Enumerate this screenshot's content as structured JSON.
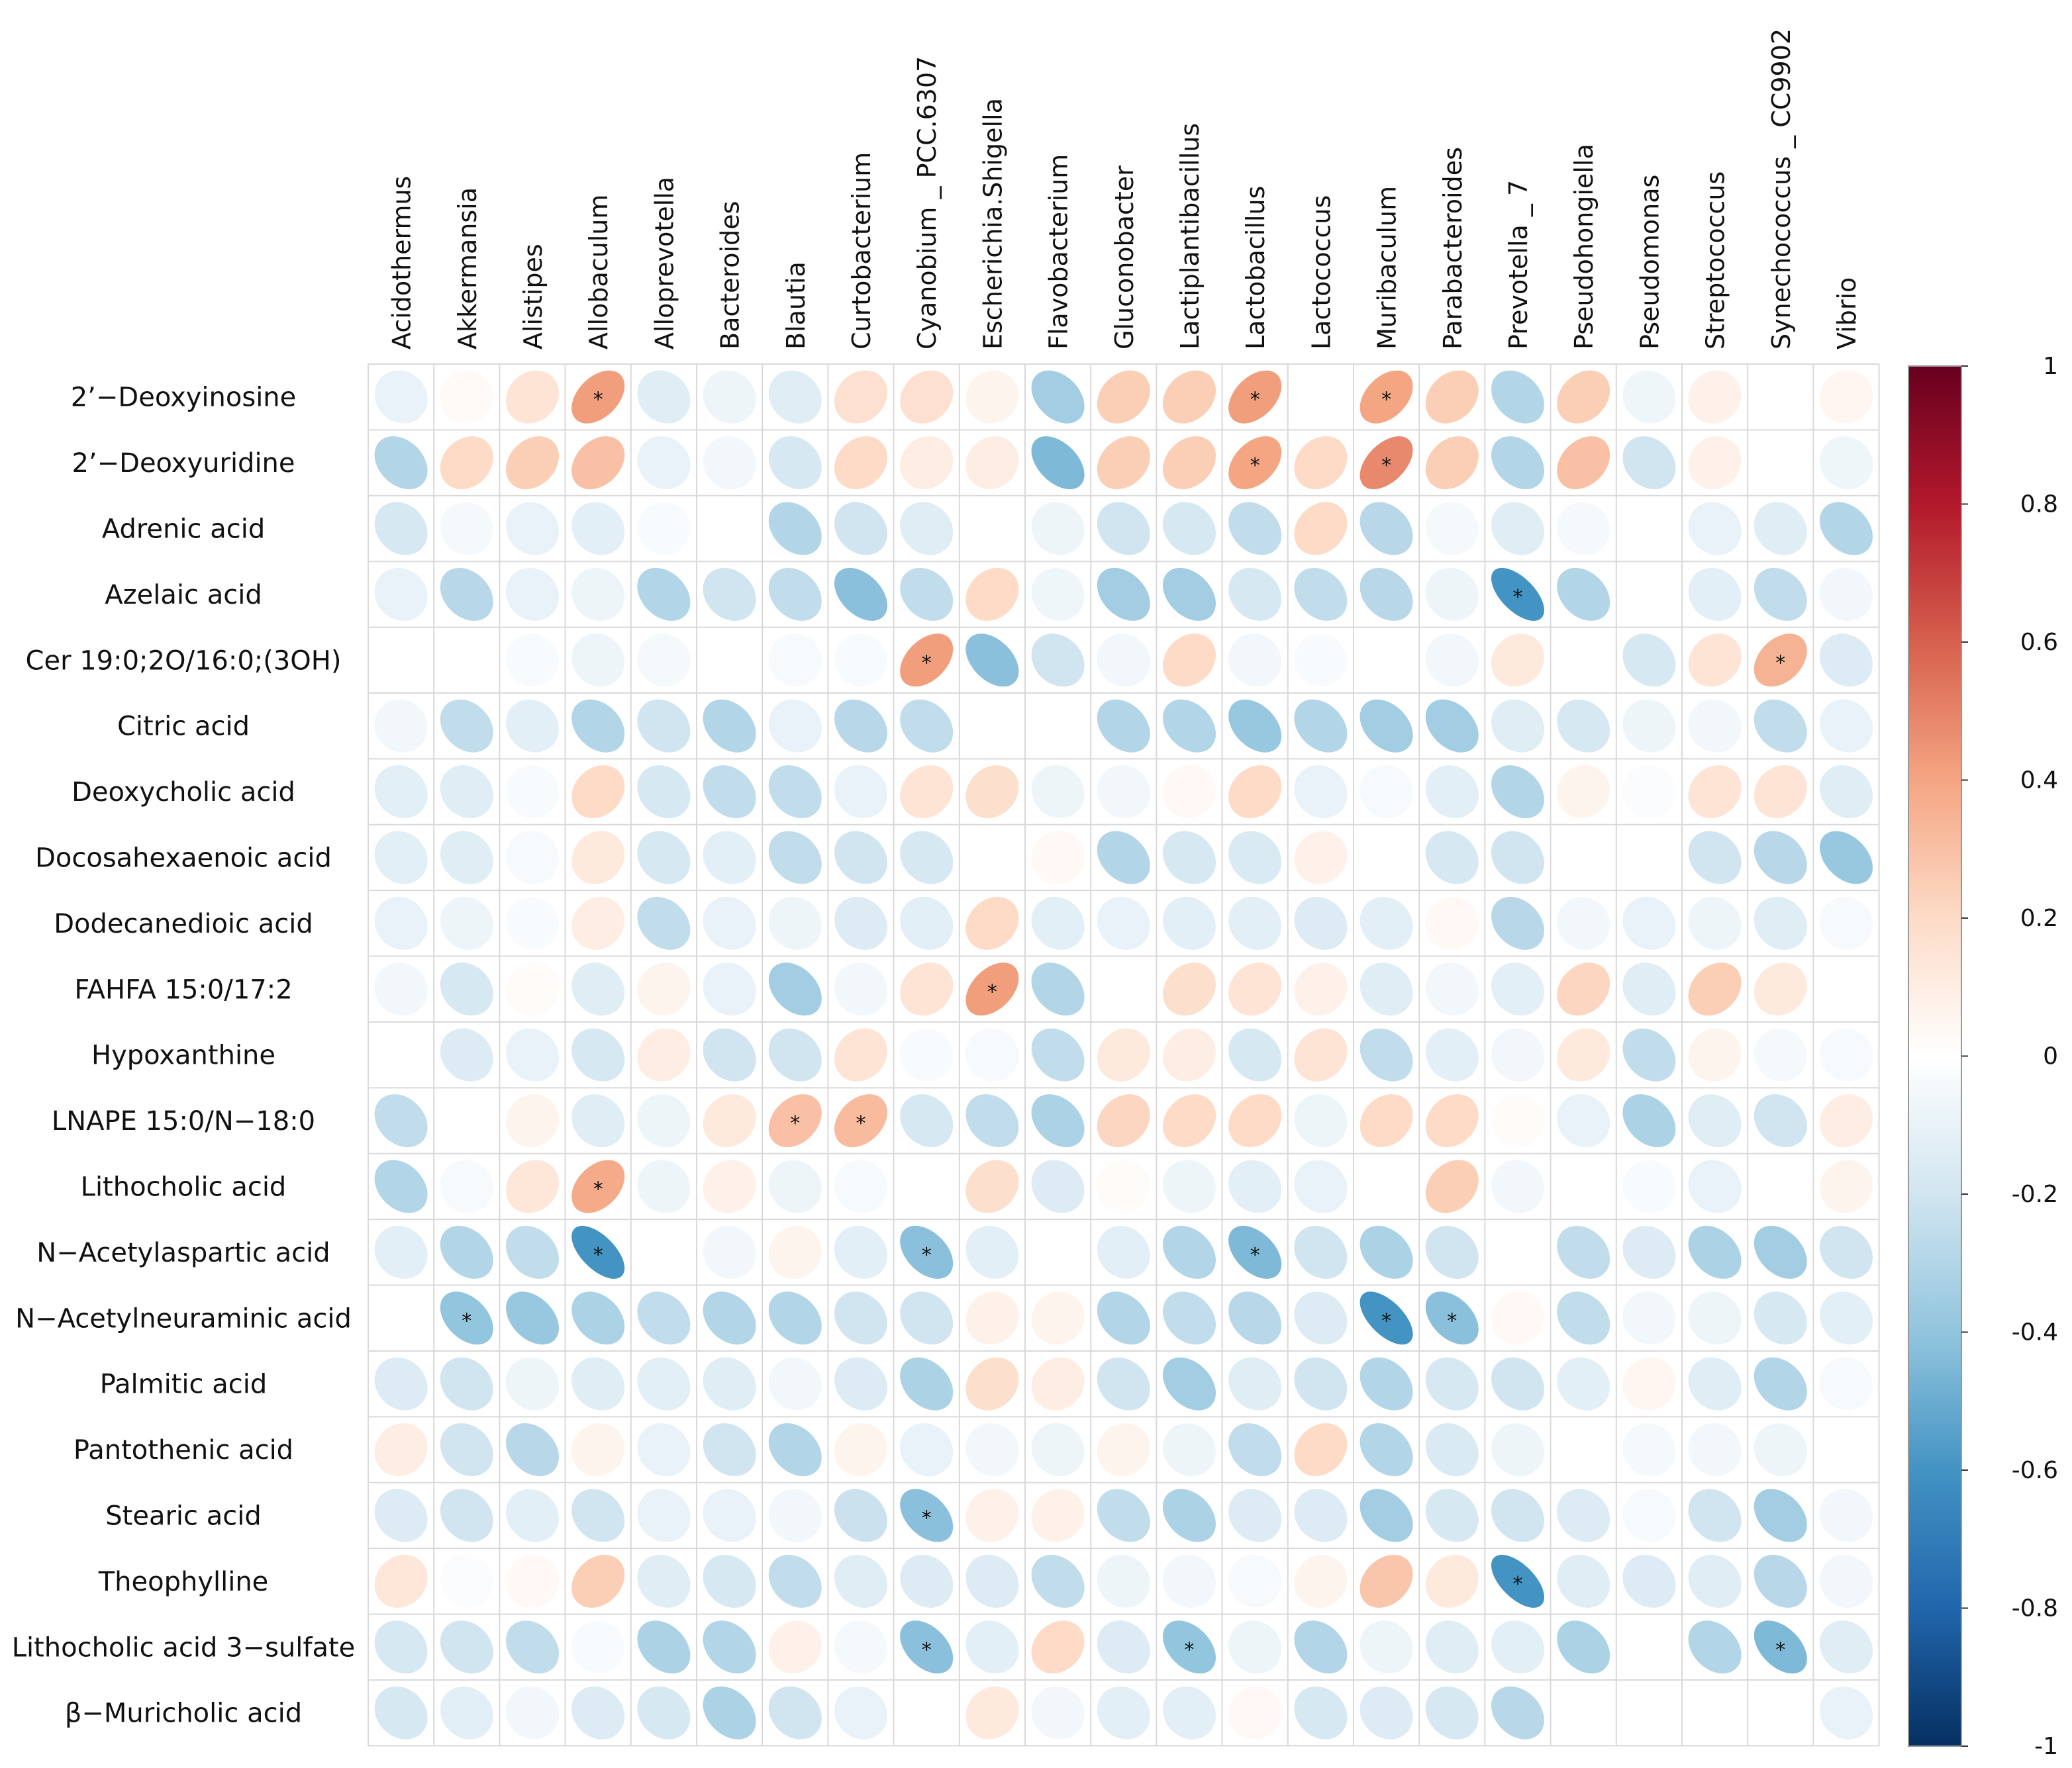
{
  "chart_data": {
    "type": "heatmap",
    "title": "",
    "xlabel": "",
    "ylabel": "",
    "columns": [
      "Acidothermus",
      "Akkermansia",
      "Alistipes",
      "Allobaculum",
      "Alloprevotella",
      "Bacteroides",
      "Blautia",
      "Curtobacterium",
      "Cyanobium _ PCC.6307",
      "Escherichia.Shigella",
      "Flavobacterium",
      "Gluconobacter",
      "Lactiplantibacillus",
      "Lactobacillus",
      "Lactococcus",
      "Muribaculum",
      "Parabacteroides",
      "Prevotella _ 7",
      "Pseudohongiella",
      "Pseudomonas",
      "Streptococcus",
      "Synechococcus _ CC9902",
      "Vibrio"
    ],
    "rows": [
      "2’−Deoxyinosine",
      "2’−Deoxyuridine",
      "Adrenic acid",
      "Azelaic acid",
      "Cer 19:0;2O/16:0;(3OH)",
      "Citric acid",
      "Deoxycholic acid",
      "Docosahexaenoic acid",
      "Dodecanedioic acid",
      "FAHFA 15:0/17:2",
      "Hypoxanthine",
      "LNAPE 15:0/N−18:0",
      "Lithocholic acid",
      "N−Acetylaspartic acid",
      "N−Acetylneuraminic acid",
      "Palmitic acid",
      "Pantothenic acid",
      "Stearic acid",
      "Theophylline",
      "Lithocholic acid 3−sulfate",
      "β−Muricholic acid"
    ],
    "values": [
      [
        -0.1,
        0.03,
        0.15,
        0.42,
        -0.14,
        -0.08,
        -0.14,
        0.17,
        0.17,
        0.06,
        -0.35,
        0.25,
        0.25,
        0.42,
        0.0,
        0.4,
        0.25,
        -0.3,
        0.25,
        -0.07,
        0.08,
        0.0,
        0.05
      ],
      [
        -0.3,
        0.2,
        0.25,
        0.3,
        -0.1,
        -0.06,
        -0.18,
        0.2,
        0.1,
        0.1,
        -0.45,
        0.25,
        0.25,
        0.4,
        0.2,
        0.48,
        0.25,
        -0.3,
        0.3,
        -0.2,
        0.08,
        0.0,
        -0.07
      ],
      [
        -0.18,
        -0.05,
        -0.1,
        -0.12,
        -0.03,
        0.0,
        -0.3,
        -0.2,
        -0.14,
        0.0,
        -0.08,
        -0.2,
        -0.18,
        -0.25,
        0.2,
        -0.28,
        -0.05,
        -0.14,
        -0.05,
        0.0,
        -0.1,
        -0.14,
        -0.3
      ],
      [
        -0.1,
        -0.28,
        -0.1,
        -0.08,
        -0.3,
        -0.2,
        -0.25,
        -0.42,
        -0.25,
        0.2,
        -0.07,
        -0.35,
        -0.35,
        -0.18,
        -0.25,
        -0.28,
        -0.08,
        -0.6,
        -0.3,
        0.0,
        -0.12,
        -0.25,
        -0.06
      ],
      [
        0.0,
        0.0,
        -0.03,
        -0.08,
        -0.05,
        0.0,
        -0.04,
        -0.03,
        0.42,
        -0.42,
        -0.2,
        -0.06,
        0.2,
        -0.06,
        -0.03,
        0.0,
        -0.06,
        0.12,
        0.0,
        -0.18,
        0.15,
        0.35,
        -0.15
      ],
      [
        -0.06,
        -0.25,
        -0.12,
        -0.3,
        -0.2,
        -0.3,
        -0.1,
        -0.28,
        -0.25,
        0.0,
        0.0,
        -0.3,
        -0.3,
        -0.38,
        -0.3,
        -0.35,
        -0.35,
        -0.14,
        -0.18,
        -0.08,
        -0.06,
        -0.25,
        -0.1
      ],
      [
        -0.12,
        -0.14,
        -0.03,
        0.2,
        -0.18,
        -0.25,
        -0.25,
        -0.1,
        0.15,
        0.18,
        -0.08,
        -0.06,
        0.04,
        0.2,
        -0.1,
        -0.04,
        -0.12,
        -0.3,
        0.06,
        -0.02,
        0.15,
        0.15,
        -0.14
      ],
      [
        -0.12,
        -0.14,
        -0.04,
        0.12,
        -0.18,
        -0.12,
        -0.25,
        -0.2,
        -0.18,
        0.0,
        0.04,
        -0.3,
        -0.18,
        -0.16,
        0.08,
        0.0,
        -0.18,
        -0.2,
        0.0,
        0.0,
        -0.2,
        -0.28,
        -0.38
      ],
      [
        -0.1,
        -0.08,
        -0.03,
        0.1,
        -0.25,
        -0.1,
        -0.08,
        -0.15,
        -0.12,
        0.2,
        -0.12,
        -0.1,
        -0.12,
        -0.12,
        -0.15,
        -0.12,
        0.04,
        -0.28,
        -0.06,
        -0.1,
        -0.08,
        -0.14,
        -0.04
      ],
      [
        -0.06,
        -0.18,
        0.02,
        -0.14,
        0.06,
        -0.1,
        -0.35,
        -0.06,
        0.15,
        0.42,
        -0.3,
        0.0,
        0.18,
        0.15,
        0.08,
        -0.14,
        -0.06,
        -0.12,
        0.22,
        -0.14,
        0.25,
        0.12,
        0.0
      ],
      [
        0.0,
        -0.15,
        -0.1,
        -0.18,
        0.1,
        -0.2,
        -0.2,
        0.15,
        -0.03,
        -0.04,
        -0.25,
        0.12,
        0.1,
        -0.18,
        0.15,
        -0.25,
        -0.12,
        -0.06,
        0.12,
        -0.25,
        0.06,
        -0.05,
        -0.04
      ],
      [
        -0.25,
        0.0,
        0.06,
        -0.14,
        -0.08,
        0.12,
        0.3,
        0.32,
        -0.18,
        -0.25,
        -0.32,
        0.22,
        0.2,
        0.2,
        -0.08,
        0.2,
        0.2,
        0.02,
        -0.1,
        -0.32,
        -0.14,
        -0.2,
        0.1
      ],
      [
        -0.3,
        -0.04,
        0.14,
        0.38,
        -0.08,
        0.08,
        -0.08,
        -0.04,
        0.0,
        0.18,
        -0.15,
        0.02,
        -0.08,
        -0.12,
        -0.1,
        0.0,
        0.25,
        -0.06,
        0.0,
        -0.03,
        -0.1,
        0.0,
        0.06
      ],
      [
        -0.12,
        -0.3,
        -0.25,
        -0.6,
        0.0,
        -0.06,
        0.06,
        -0.12,
        -0.42,
        -0.12,
        0.0,
        -0.12,
        -0.3,
        -0.45,
        -0.2,
        -0.32,
        -0.2,
        0.0,
        -0.25,
        -0.15,
        -0.32,
        -0.35,
        -0.2
      ],
      [
        0.0,
        -0.4,
        -0.38,
        -0.32,
        -0.25,
        -0.3,
        -0.3,
        -0.2,
        -0.2,
        0.08,
        0.06,
        -0.3,
        -0.25,
        -0.28,
        -0.15,
        -0.6,
        -0.42,
        0.04,
        -0.25,
        -0.06,
        -0.08,
        -0.18,
        -0.12
      ],
      [
        -0.15,
        -0.2,
        -0.08,
        -0.14,
        -0.12,
        -0.14,
        -0.06,
        -0.15,
        -0.32,
        0.18,
        0.1,
        -0.2,
        -0.35,
        -0.14,
        -0.2,
        -0.3,
        -0.18,
        -0.2,
        -0.12,
        0.05,
        -0.14,
        -0.3,
        -0.04
      ],
      [
        0.1,
        -0.2,
        -0.28,
        0.06,
        -0.1,
        -0.2,
        -0.3,
        0.06,
        -0.1,
        -0.06,
        -0.08,
        0.06,
        -0.08,
        -0.25,
        0.2,
        -0.3,
        -0.16,
        -0.08,
        0.0,
        -0.05,
        -0.06,
        -0.08,
        0.0
      ],
      [
        -0.15,
        -0.2,
        -0.12,
        -0.2,
        -0.1,
        -0.1,
        -0.06,
        -0.22,
        -0.42,
        0.08,
        0.08,
        -0.25,
        -0.32,
        -0.15,
        -0.15,
        -0.35,
        -0.18,
        -0.2,
        -0.15,
        -0.04,
        -0.2,
        -0.35,
        -0.06
      ],
      [
        0.14,
        -0.02,
        0.04,
        0.25,
        -0.14,
        -0.18,
        -0.25,
        -0.14,
        -0.15,
        -0.15,
        -0.25,
        -0.08,
        -0.06,
        -0.04,
        0.06,
        0.28,
        0.12,
        -0.6,
        -0.14,
        -0.15,
        -0.14,
        -0.28,
        -0.06
      ],
      [
        -0.18,
        -0.2,
        -0.25,
        -0.03,
        -0.32,
        -0.3,
        0.08,
        -0.05,
        -0.42,
        -0.12,
        0.2,
        -0.15,
        -0.4,
        -0.08,
        -0.3,
        -0.08,
        -0.14,
        -0.12,
        -0.32,
        0.0,
        -0.3,
        -0.45,
        -0.14
      ],
      [
        -0.18,
        -0.12,
        -0.06,
        -0.15,
        -0.18,
        -0.32,
        -0.2,
        -0.1,
        0.0,
        0.12,
        -0.06,
        -0.12,
        -0.12,
        0.04,
        -0.18,
        -0.15,
        -0.18,
        -0.28,
        0.0,
        0.0,
        0.0,
        0.0,
        -0.1
      ]
    ],
    "significant": [
      [
        0,
        3
      ],
      [
        0,
        13
      ],
      [
        0,
        15
      ],
      [
        1,
        13
      ],
      [
        1,
        15
      ],
      [
        3,
        17
      ],
      [
        4,
        8
      ],
      [
        4,
        21
      ],
      [
        9,
        9
      ],
      [
        11,
        6
      ],
      [
        11,
        7
      ],
      [
        12,
        3
      ],
      [
        13,
        3
      ],
      [
        13,
        8
      ],
      [
        13,
        13
      ],
      [
        14,
        1
      ],
      [
        14,
        15
      ],
      [
        14,
        16
      ],
      [
        17,
        8
      ],
      [
        18,
        17
      ],
      [
        19,
        8
      ],
      [
        19,
        12
      ],
      [
        19,
        21
      ]
    ],
    "significance_marker": "*",
    "colorbar": {
      "range": [
        -1,
        1
      ],
      "ticks": [
        "1",
        "0.8",
        "0.6",
        "0.4",
        "0.2",
        "0",
        "-0.2",
        "-0.4",
        "-0.6",
        "-0.8",
        "-1"
      ],
      "colors": [
        "#67001F",
        "#B2182B",
        "#D6604D",
        "#F4A582",
        "#FDDBC7",
        "#FFFFFF",
        "#D1E5F0",
        "#92C5DE",
        "#4393C3",
        "#2166AC",
        "#053061"
      ],
      "placement": "right"
    },
    "grid": true,
    "legend": "colorbar right"
  }
}
